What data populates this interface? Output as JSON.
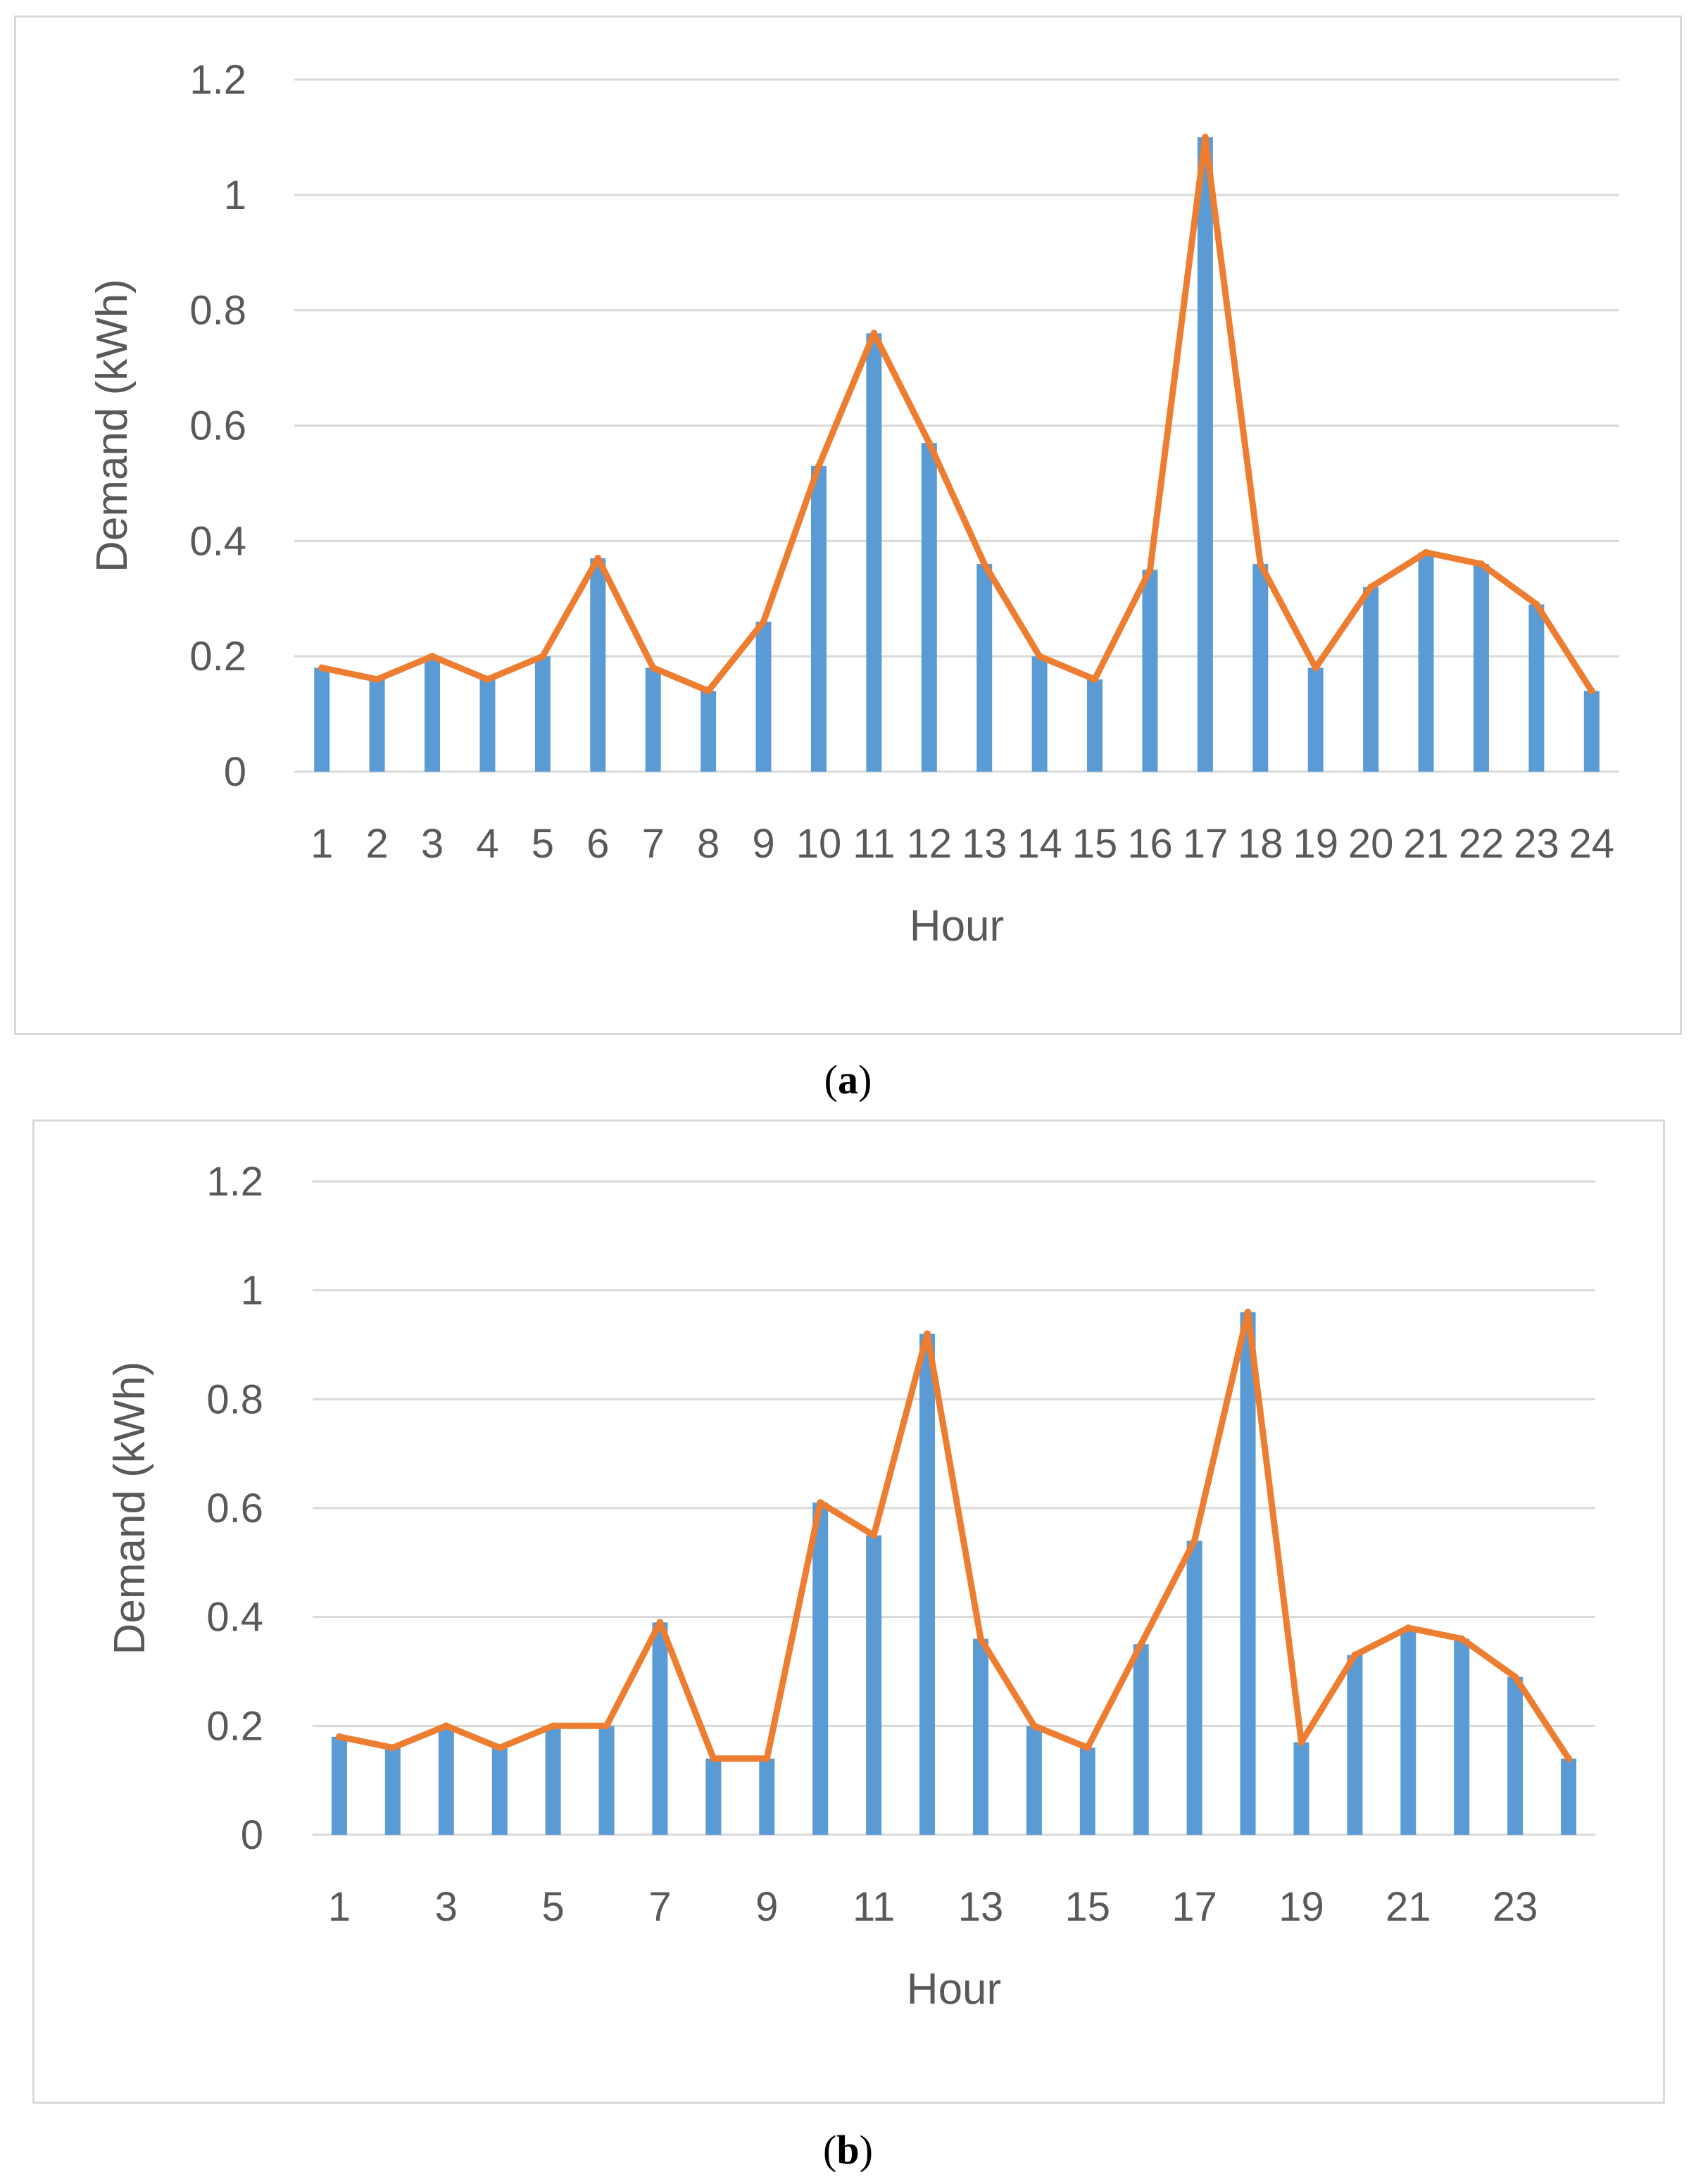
{
  "chart_data": [
    {
      "id": "a",
      "type": "bar",
      "title": "",
      "caption_label": "a",
      "xlabel": "Hour",
      "ylabel": "Demand (kWh)",
      "ylim": [
        0,
        1.2
      ],
      "yticks": [
        0,
        0.2,
        0.4,
        0.6,
        0.8,
        1,
        1.2
      ],
      "ytick_labels": [
        "0",
        "0.2",
        "0.4",
        "0.6",
        "0.8",
        "1",
        "1.2"
      ],
      "categories": [
        "1",
        "2",
        "3",
        "4",
        "5",
        "6",
        "7",
        "8",
        "9",
        "10",
        "11",
        "12",
        "13",
        "14",
        "15",
        "16",
        "17",
        "18",
        "19",
        "20",
        "21",
        "22",
        "23",
        "24"
      ],
      "xtick_labels": [
        "1",
        "2",
        "3",
        "4",
        "5",
        "6",
        "7",
        "8",
        "9",
        "10",
        "11",
        "12",
        "13",
        "14",
        "15",
        "16",
        "17",
        "18",
        "19",
        "20",
        "21",
        "22",
        "23",
        "24"
      ],
      "series": [
        {
          "name": "Demand (bars)",
          "kind": "bar",
          "color": "#5b9bd5",
          "values": [
            0.18,
            0.16,
            0.2,
            0.16,
            0.2,
            0.37,
            0.18,
            0.14,
            0.26,
            0.53,
            0.76,
            0.57,
            0.36,
            0.2,
            0.16,
            0.35,
            1.1,
            0.36,
            0.18,
            0.32,
            0.38,
            0.36,
            0.29,
            0.14
          ]
        },
        {
          "name": "Demand (line)",
          "kind": "line",
          "color": "#ed7d31",
          "values": [
            0.18,
            0.16,
            0.2,
            0.16,
            0.2,
            0.37,
            0.18,
            0.14,
            0.26,
            0.53,
            0.76,
            0.57,
            0.36,
            0.2,
            0.16,
            0.35,
            1.1,
            0.36,
            0.18,
            0.32,
            0.38,
            0.36,
            0.29,
            0.14
          ]
        }
      ],
      "grid": true
    },
    {
      "id": "b",
      "type": "bar",
      "title": "",
      "caption_label": "b",
      "xlabel": "Hour",
      "ylabel": "Demand (kWh)",
      "ylim": [
        0,
        1.2
      ],
      "yticks": [
        0,
        0.2,
        0.4,
        0.6,
        0.8,
        1,
        1.2
      ],
      "ytick_labels": [
        "0",
        "0.2",
        "0.4",
        "0.6",
        "0.8",
        "1",
        "1.2"
      ],
      "categories": [
        "1",
        "2",
        "3",
        "4",
        "5",
        "6",
        "7",
        "8",
        "9",
        "10",
        "11",
        "12",
        "13",
        "14",
        "15",
        "16",
        "17",
        "18",
        "19",
        "20",
        "21",
        "22",
        "23",
        "24"
      ],
      "xtick_labels": [
        "1",
        "",
        "3",
        "",
        "5",
        "",
        "7",
        "",
        "9",
        "",
        "11",
        "",
        "13",
        "",
        "15",
        "",
        "17",
        "",
        "19",
        "",
        "21",
        "",
        "23",
        ""
      ],
      "series": [
        {
          "name": "Demand (bars)",
          "kind": "bar",
          "color": "#5b9bd5",
          "values": [
            0.18,
            0.16,
            0.2,
            0.16,
            0.2,
            0.2,
            0.39,
            0.14,
            0.14,
            0.61,
            0.55,
            0.92,
            0.36,
            0.2,
            0.16,
            0.35,
            0.54,
            0.96,
            0.17,
            0.33,
            0.38,
            0.36,
            0.29,
            0.14
          ]
        },
        {
          "name": "Demand (line)",
          "kind": "line",
          "color": "#ed7d31",
          "values": [
            0.18,
            0.16,
            0.2,
            0.16,
            0.2,
            0.2,
            0.39,
            0.14,
            0.14,
            0.61,
            0.55,
            0.92,
            0.36,
            0.2,
            0.16,
            0.35,
            0.54,
            0.96,
            0.17,
            0.33,
            0.38,
            0.36,
            0.29,
            0.14
          ]
        }
      ],
      "grid": true
    }
  ]
}
